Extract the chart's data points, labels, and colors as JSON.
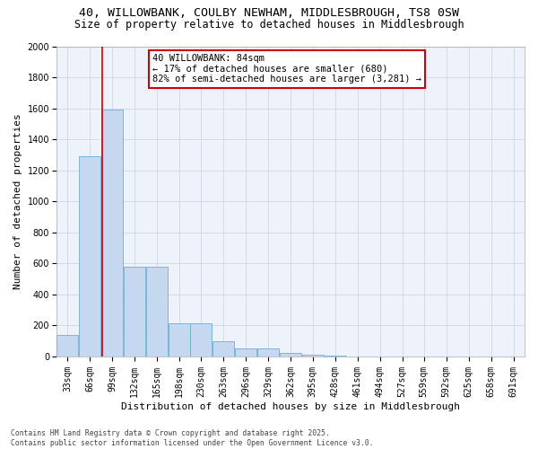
{
  "title": "40, WILLOWBANK, COULBY NEWHAM, MIDDLESBROUGH, TS8 0SW",
  "subtitle": "Size of property relative to detached houses in Middlesbrough",
  "xlabel": "Distribution of detached houses by size in Middlesbrough",
  "ylabel": "Number of detached properties",
  "bins": [
    33,
    66,
    99,
    132,
    165,
    198,
    230,
    263,
    296,
    329,
    362,
    395,
    428,
    461,
    494,
    527,
    559,
    592,
    625,
    658,
    691
  ],
  "counts": [
    140,
    1290,
    1590,
    580,
    580,
    215,
    215,
    100,
    50,
    50,
    25,
    10,
    5,
    0,
    0,
    0,
    0,
    0,
    0,
    0,
    0
  ],
  "bar_color": "#c5d8f0",
  "bar_edge_color": "#6baed6",
  "red_line_x": 84,
  "ylim": [
    0,
    2000
  ],
  "yticks": [
    0,
    200,
    400,
    600,
    800,
    1000,
    1200,
    1400,
    1600,
    1800,
    2000
  ],
  "annotation_line1": "40 WILLOWBANK: 84sqm",
  "annotation_line2": "← 17% of detached houses are smaller (680)",
  "annotation_line3": "82% of semi-detached houses are larger (3,281) →",
  "annotation_box_color": "#ffffff",
  "annotation_edge_color": "#cc0000",
  "background_color": "#eef2fb",
  "grid_color": "#c8d0e0",
  "footer_text": "Contains HM Land Registry data © Crown copyright and database right 2025.\nContains public sector information licensed under the Open Government Licence v3.0.",
  "title_fontsize": 9.5,
  "subtitle_fontsize": 8.5,
  "xlabel_fontsize": 8,
  "ylabel_fontsize": 8,
  "tick_fontsize": 7,
  "annotation_fontsize": 7.5,
  "footer_fontsize": 5.8
}
